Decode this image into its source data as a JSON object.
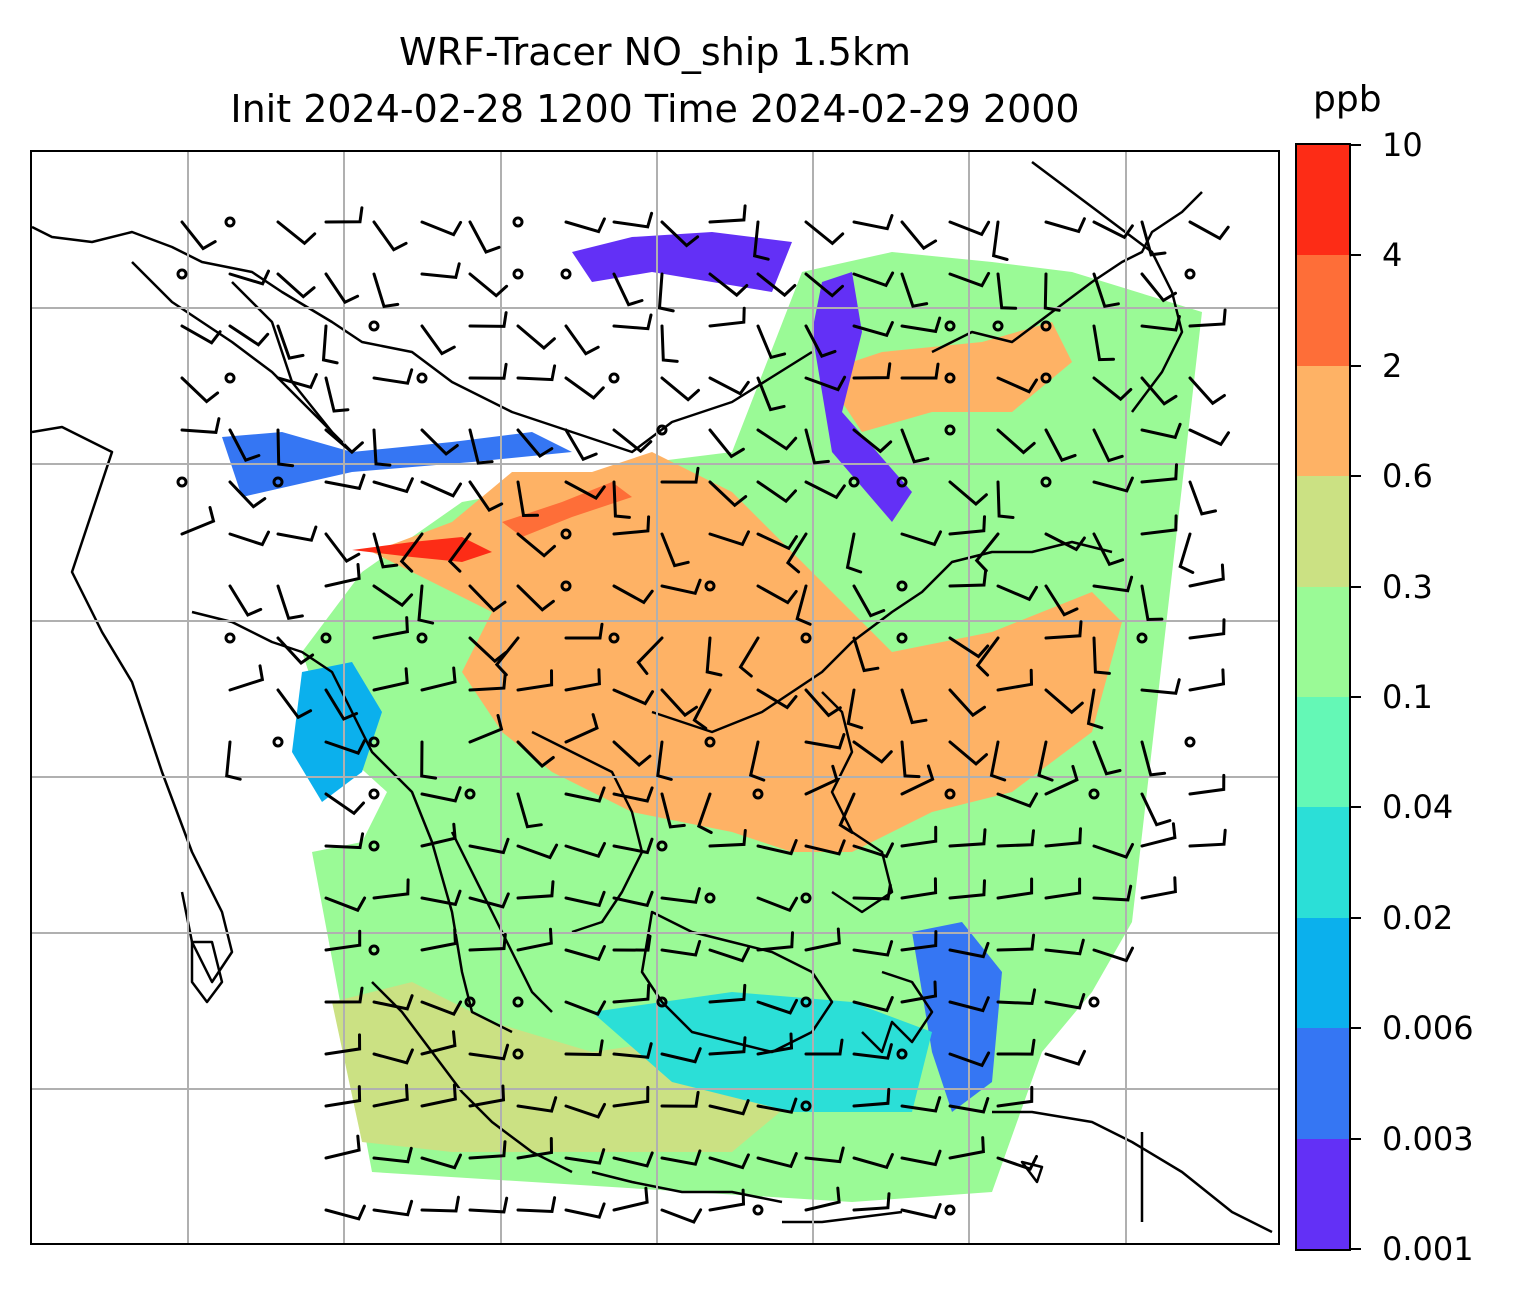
{
  "title": {
    "line1": "WRF-Tracer NO_ship 1.5km",
    "line2": "Init 2024-02-28 1200 Time 2024-02-29 2000"
  },
  "colorbar": {
    "unit": "ppb",
    "levels": [
      "0.001",
      "0.003",
      "0.006",
      "0.02",
      "0.04",
      "0.1",
      "0.3",
      "0.6",
      "2",
      "4",
      "10"
    ],
    "colors": [
      "#6330f6",
      "#3576f3",
      "#0bb0ed",
      "#2bdfd7",
      "#64f8b6",
      "#9afa96",
      "#cbe183",
      "#feb265",
      "#fe6e38",
      "#fd2c16"
    ]
  },
  "map": {
    "grid_on": true,
    "coastline_color": "#000000",
    "wind_barb_color": "#000000",
    "gridline_color": "#b0b0b0",
    "plume_fill_level": "0.3"
  }
}
